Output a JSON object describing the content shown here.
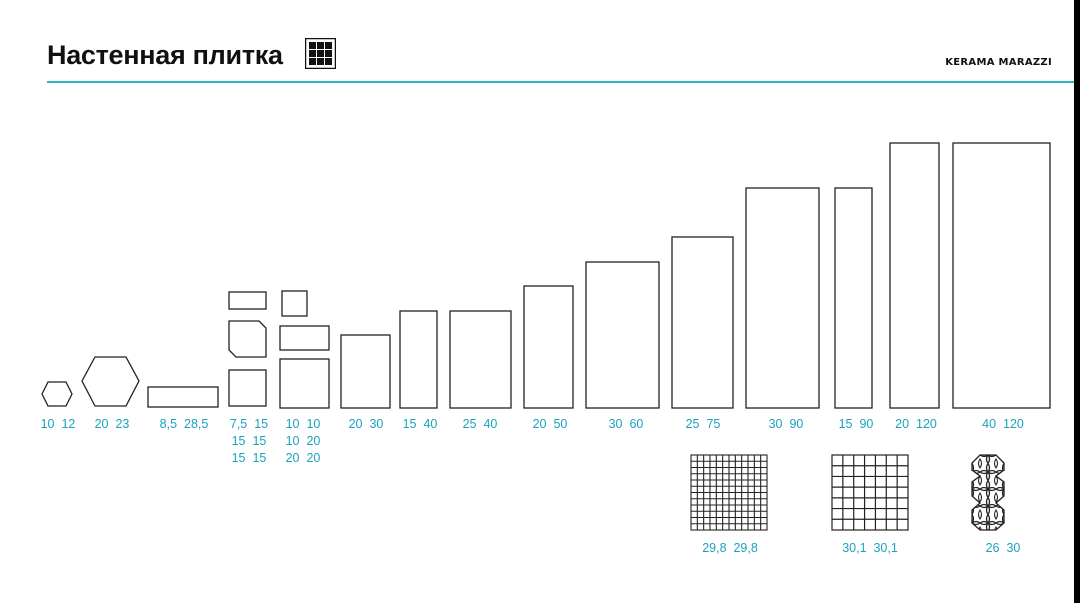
{
  "header": {
    "title": "Настенная плитка",
    "brand": "KERAMA MARAZZI"
  },
  "colors": {
    "accent": "#29b6c8",
    "label": "#1aa3bf",
    "outline": "#222222"
  },
  "icons": {
    "title_icon": "grid-tile-icon"
  },
  "size_labels": [
    "10  12",
    "20  23",
    "8,5  28,5",
    "7,5  15\n15  15\n15  15",
    "10  10\n10  20\n20  20",
    "20  30",
    "15  40",
    "25  40",
    "20  50",
    "30  60",
    "25  75",
    "30  90",
    "15  90",
    "20  120",
    "40  120"
  ],
  "mosaic_labels": [
    "29,8  29,8",
    "30,1  30,1",
    "26  30"
  ]
}
